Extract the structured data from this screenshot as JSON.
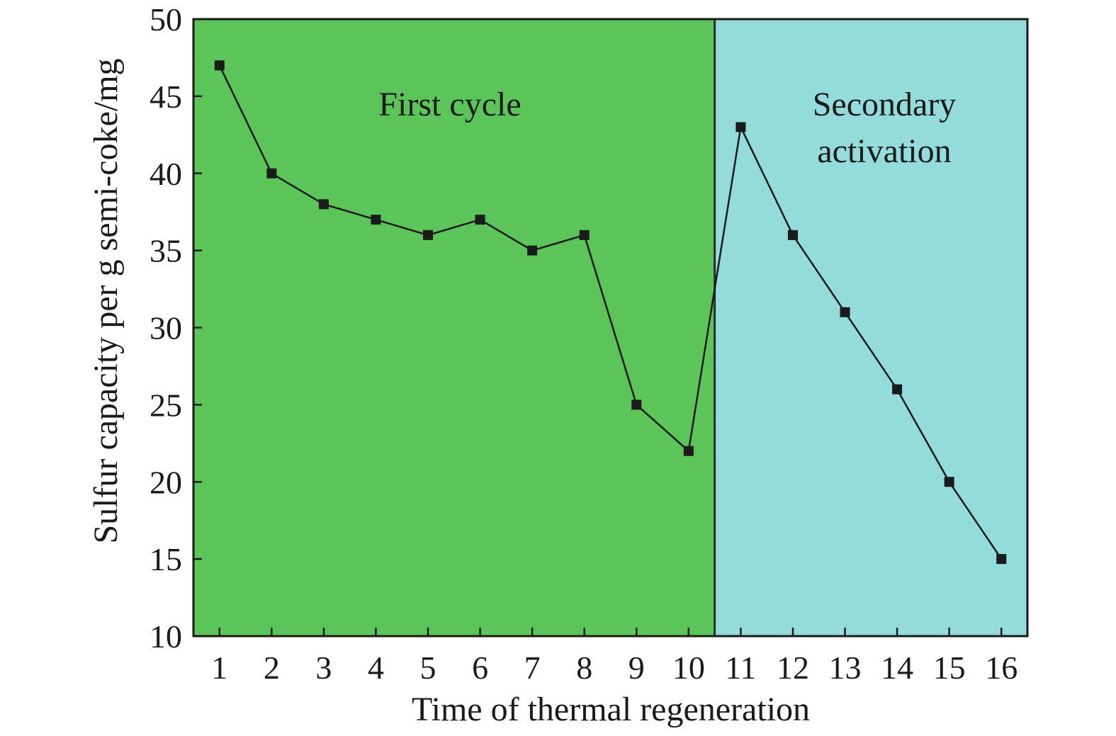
{
  "chart_data": {
    "type": "line",
    "title": "",
    "xlabel": "Time of thermal regeneration",
    "ylabel": "Sulfur capacity per g semi-coke/mg",
    "x": [
      1,
      2,
      3,
      4,
      5,
      6,
      7,
      8,
      9,
      10,
      11,
      12,
      13,
      14,
      15,
      16
    ],
    "x_tick_labels": [
      "1",
      "2",
      "3",
      "4",
      "5",
      "6",
      "7",
      "8",
      "9",
      "10",
      "11",
      "12",
      "13",
      "14",
      "15",
      "16"
    ],
    "y_ticks": [
      10,
      15,
      20,
      25,
      30,
      35,
      40,
      45,
      50
    ],
    "y_tick_labels": [
      "10",
      "15",
      "20",
      "25",
      "30",
      "35",
      "40",
      "45",
      "50"
    ],
    "ylim": [
      10,
      50
    ],
    "xlim": [
      0.5,
      16.5
    ],
    "grid": false,
    "series": [
      {
        "values": [
          47,
          40,
          38,
          37,
          36,
          37,
          35,
          36,
          25,
          22,
          43,
          36,
          31,
          26,
          20,
          15
        ],
        "color": "#1a1a1a",
        "marker": "square"
      }
    ],
    "regions": [
      {
        "label": "First cycle",
        "x_start": 0.5,
        "x_end": 10.5,
        "color": "#5cc55a"
      },
      {
        "label": "Secondary activation",
        "label_lines": [
          "Secondary",
          "activation"
        ],
        "x_start": 10.5,
        "x_end": 16.5,
        "color": "#93dcdb"
      }
    ],
    "region_divider_x": 10.5
  }
}
